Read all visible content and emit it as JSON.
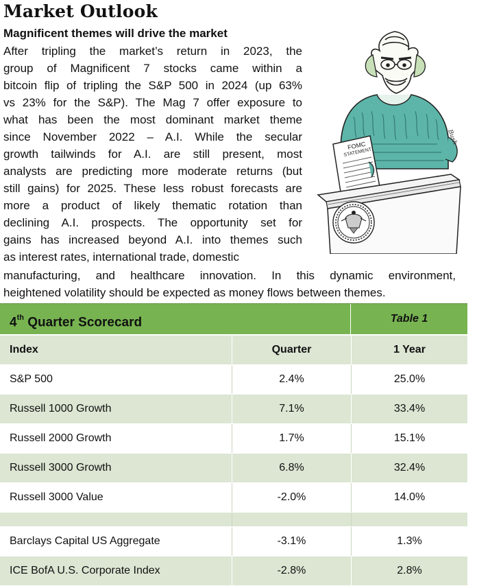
{
  "header": {
    "title": "Market Outlook",
    "subtitle": "Magnificent themes will drive the market"
  },
  "article": {
    "lines_narrow": [
      "After tripling the market’s return in 2023, the",
      "group of Magnificent 7 stocks came within a",
      "bitcoin flip of tripling the S&P 500 in 2024 (up 63%",
      "vs 23% for the S&P).  The Mag 7 offer exposure to",
      "what has been the most dominant market theme",
      "since November 2022 – A.I.  While the secular",
      "growth tailwinds for A.I. are still present, most",
      "analysts are predicting more moderate returns (but",
      "still gains) for 2025.  These less robust forecasts are",
      "more a product of likely thematic rotation than",
      "declining A.I. prospects.  The opportunity set for",
      "gains has increased beyond A.I. into themes such",
      "as interest rates, international trade, domestic"
    ],
    "lines_wide": [
      "manufacturing, and healthcare innovation.  In this dynamic environment,",
      "heightened volatility should be expected as money flows between themes."
    ]
  },
  "cartoon": {
    "document_label_1": "FOMC",
    "document_label_2": "STATEMENT",
    "signature": "Bush"
  },
  "scorecard": {
    "title_main": "4",
    "title_sup": "th",
    "title_rest": " Quarter Scorecard",
    "table_label": "Table 1",
    "columns": [
      "Index",
      "Quarter",
      "1 Year"
    ],
    "rows_group1": [
      {
        "index": "S&P 500",
        "quarter": "2.4%",
        "year": "25.0%"
      },
      {
        "index": "Russell 1000 Growth",
        "quarter": "7.1%",
        "year": "33.4%"
      },
      {
        "index": "Russell 2000 Growth",
        "quarter": "1.7%",
        "year": "15.1%"
      },
      {
        "index": "Russell 3000 Growth",
        "quarter": "6.8%",
        "year": "32.4%"
      },
      {
        "index": "Russell 3000 Value",
        "quarter": "-2.0%",
        "year": "14.0%"
      }
    ],
    "rows_group2": [
      {
        "index": "Barclays Capital US Aggregate",
        "quarter": "-3.1%",
        "year": "1.3%"
      },
      {
        "index": "ICE BofA U.S. Corporate Index",
        "quarter": "-2.8%",
        "year": "2.8%"
      }
    ]
  }
}
